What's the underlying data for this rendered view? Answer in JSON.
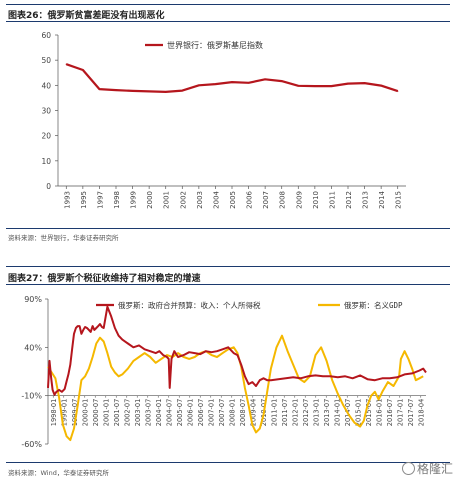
{
  "chart_data": [
    {
      "type": "line",
      "title": "图表26：俄罗斯贫富差距没有出现恶化",
      "xlabel": "",
      "ylabel": "",
      "categories": [
        "1993",
        "1995",
        "1997",
        "1998",
        "1999",
        "2000",
        "2001",
        "2002",
        "2003",
        "2004",
        "2005",
        "2006",
        "2007",
        "2008",
        "2009",
        "2010",
        "2011",
        "2012",
        "2013",
        "2014",
        "2015"
      ],
      "series": [
        {
          "name": "世界银行：俄罗斯基尼指数",
          "color": "#b5161d",
          "values": [
            48.4,
            46.1,
            38.5,
            38.1,
            37.8,
            37.6,
            37.4,
            37.9,
            40.0,
            40.5,
            41.3,
            41.0,
            42.4,
            41.7,
            39.8,
            39.7,
            39.7,
            40.7,
            40.9,
            39.9,
            37.7
          ]
        }
      ],
      "ylim": [
        0,
        60
      ],
      "yticks": [
        0,
        10,
        20,
        30,
        40,
        50,
        60
      ],
      "grid": false,
      "legend": "top-center",
      "source": "资料来源：世界银行，华泰证券研究所"
    },
    {
      "type": "line",
      "title": "图表27：俄罗斯个税征收维持了相对稳定的增速",
      "xlabel": "",
      "ylabel": "",
      "xticks": [
        "1998-01",
        "1999-01",
        "1999-07",
        "2000-01",
        "2000-07",
        "2001-01",
        "2001-07",
        "2002-07",
        "2003-01",
        "2003-07",
        "2004-01",
        "2004-07",
        "2005-07",
        "2006-01",
        "2006-07",
        "2007-01",
        "2007-07",
        "2008-01",
        "2008-07",
        "2009-04",
        "2010-07",
        "2011-01",
        "2011-07",
        "2012-01",
        "2012-07",
        "2013-01",
        "2013-07",
        "2014-01",
        "2014-07",
        "2015-01",
        "2015-07",
        "2016-01",
        "2016-07",
        "2017-01",
        "2017-07",
        "2018-04"
      ],
      "xlim": [
        1998.0,
        2018.35
      ],
      "ylim": [
        -60,
        90
      ],
      "yticks": [
        "90%",
        "40%",
        "-10%",
        "-60%"
      ],
      "ytick_values": [
        90,
        40,
        -10,
        -60
      ],
      "grid": false,
      "legend": "top",
      "series": [
        {
          "name": "俄罗斯：政府合并预算：收入：个人所得税",
          "color": "#b5161d",
          "x": [
            1998.0,
            1998.08,
            1998.17,
            1998.25,
            1998.35,
            1998.45,
            1998.6,
            1998.75,
            1998.9,
            1999.0,
            1999.1,
            1999.2,
            1999.3,
            1999.4,
            1999.5,
            1999.6,
            1999.7,
            1999.8,
            1999.9,
            2000.0,
            2000.1,
            2000.2,
            2000.3,
            2000.4,
            2000.5,
            2000.6,
            2000.7,
            2000.8,
            2000.9,
            2001.0,
            2001.2,
            2001.4,
            2001.6,
            2001.8,
            2002.0,
            2002.3,
            2002.6,
            2002.9,
            2003.2,
            2003.5,
            2003.8,
            2004.0,
            2004.2,
            2004.4,
            2004.5,
            2004.55,
            2004.65,
            2004.8,
            2005.0,
            2005.3,
            2005.6,
            2005.9,
            2006.2,
            2006.5,
            2006.8,
            2007.1,
            2007.4,
            2007.7,
            2008.0,
            2008.2,
            2008.4,
            2008.6,
            2008.8,
            2009.0,
            2009.2,
            2009.4,
            2009.6,
            2009.8,
            2010.0,
            2010.4,
            2010.8,
            2011.2,
            2011.6,
            2012.0,
            2012.4,
            2012.8,
            2013.2,
            2013.6,
            2014.0,
            2014.4,
            2014.8,
            2015.2,
            2015.6,
            2016.0,
            2016.4,
            2016.8,
            2017.2,
            2017.6,
            2018.0,
            2018.2,
            2018.35
          ],
          "y": [
            -2,
            26,
            8,
            -4,
            -9,
            -6,
            -4,
            -6,
            -3,
            5,
            12,
            22,
            38,
            54,
            60,
            62,
            62,
            54,
            58,
            61,
            60,
            58,
            56,
            62,
            58,
            60,
            62,
            64,
            61,
            60,
            82,
            72,
            60,
            52,
            48,
            44,
            40,
            42,
            38,
            36,
            34,
            36,
            32,
            30,
            28,
            -2,
            28,
            36,
            30,
            32,
            35,
            34,
            33,
            36,
            35,
            36,
            38,
            40,
            34,
            32,
            22,
            10,
            2,
            4,
            0,
            6,
            8,
            6,
            6,
            7,
            8,
            9,
            8,
            10,
            11,
            10,
            10,
            9,
            10,
            8,
            11,
            7,
            6,
            8,
            8,
            9,
            12,
            13,
            16,
            18,
            14
          ]
        },
        {
          "name": "俄罗斯：名义GDP",
          "color": "#f5b800",
          "x": [
            1998.0,
            1998.2,
            1998.4,
            1998.6,
            1998.8,
            1999.0,
            1999.2,
            1999.4,
            1999.6,
            1999.8,
            2000.0,
            2000.2,
            2000.4,
            2000.6,
            2000.8,
            2001.0,
            2001.2,
            2001.4,
            2001.6,
            2001.8,
            2002.0,
            2002.3,
            2002.6,
            2002.9,
            2003.2,
            2003.5,
            2003.8,
            2004.1,
            2004.4,
            2004.7,
            2005.0,
            2005.3,
            2005.6,
            2005.9,
            2006.2,
            2006.5,
            2006.8,
            2007.1,
            2007.4,
            2007.7,
            2008.0,
            2008.2,
            2008.4,
            2008.6,
            2008.8,
            2009.0,
            2009.2,
            2009.4,
            2009.6,
            2009.8,
            2010.0,
            2010.3,
            2010.6,
            2010.9,
            2011.2,
            2011.5,
            2011.8,
            2012.1,
            2012.4,
            2012.7,
            2013.0,
            2013.3,
            2013.6,
            2013.9,
            2014.2,
            2014.5,
            2014.8,
            2015.0,
            2015.2,
            2015.4,
            2015.6,
            2015.8,
            2016.0,
            2016.3,
            2016.6,
            2016.9,
            2017.0,
            2017.2,
            2017.4,
            2017.6,
            2017.8,
            2018.0,
            2018.2
          ],
          "y": [
            20,
            14,
            8,
            -12,
            -40,
            -52,
            -56,
            -44,
            -20,
            6,
            10,
            18,
            30,
            44,
            50,
            46,
            34,
            20,
            14,
            10,
            12,
            18,
            26,
            30,
            34,
            30,
            24,
            28,
            32,
            30,
            34,
            30,
            28,
            30,
            34,
            36,
            32,
            30,
            34,
            38,
            40,
            34,
            20,
            -2,
            -20,
            -40,
            -48,
            -44,
            -30,
            -6,
            18,
            40,
            52,
            36,
            22,
            8,
            4,
            10,
            32,
            40,
            26,
            6,
            -8,
            -20,
            -30,
            -38,
            -42,
            -36,
            -20,
            -10,
            -6,
            -14,
            -6,
            4,
            0,
            10,
            28,
            36,
            28,
            18,
            6,
            8,
            10
          ]
        }
      ],
      "source": "资料来源：Wind，华泰证券研究所"
    }
  ],
  "watermark": "格隆汇"
}
